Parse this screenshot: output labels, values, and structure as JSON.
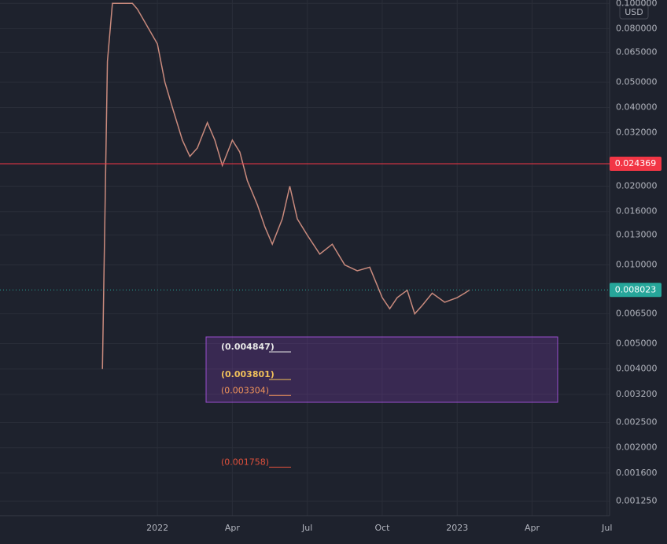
{
  "chart_data": {
    "type": "line",
    "currency": "USD",
    "log_scale": true,
    "grid": true,
    "x": [
      -2.2,
      -2.0,
      -1.8,
      -1.0,
      -0.8,
      0,
      0.3,
      0.6,
      1.0,
      1.3,
      1.6,
      2.0,
      2.3,
      2.6,
      3.0,
      3.3,
      3.6,
      4.0,
      4.3,
      4.6,
      5.0,
      5.3,
      5.6,
      6.0,
      6.5,
      7.0,
      7.5,
      8.0,
      8.5,
      9.0,
      9.3,
      9.6,
      10.0,
      10.3,
      10.6,
      11.0,
      11.5,
      12.0,
      12.3,
      12.5
    ],
    "series": [
      {
        "color": "#c98a7d",
        "values": [
          0.004,
          0.06,
          0.1,
          0.1,
          0.095,
          0.07,
          0.05,
          0.04,
          0.03,
          0.026,
          0.028,
          0.035,
          0.03,
          0.024,
          0.03,
          0.027,
          0.021,
          0.017,
          0.014,
          0.012,
          0.015,
          0.02,
          0.015,
          0.013,
          0.011,
          0.012,
          0.01,
          0.0095,
          0.0098,
          0.0075,
          0.0068,
          0.0075,
          0.008,
          0.0065,
          0.007,
          0.0078,
          0.0072,
          0.0075,
          0.0078,
          0.008023
        ]
      }
    ],
    "xlim": [
      -6.3,
      18.1
    ],
    "xticks": [
      {
        "value": 0,
        "label": "2022"
      },
      {
        "value": 3,
        "label": "Apr"
      },
      {
        "value": 6,
        "label": "Jul"
      },
      {
        "value": 9,
        "label": "Oct"
      },
      {
        "value": 12,
        "label": "2023"
      },
      {
        "value": 15,
        "label": "Apr"
      },
      {
        "value": 18,
        "label": "Jul"
      }
    ],
    "ylim": [
      0.0011,
      0.103
    ],
    "yticks": [
      {
        "value": 0.1,
        "label": "0.100000"
      },
      {
        "value": 0.08,
        "label": "0.080000"
      },
      {
        "value": 0.065,
        "label": "0.065000"
      },
      {
        "value": 0.05,
        "label": "0.050000"
      },
      {
        "value": 0.04,
        "label": "0.040000"
      },
      {
        "value": 0.032,
        "label": "0.032000"
      },
      {
        "value": 0.02,
        "label": "0.020000"
      },
      {
        "value": 0.016,
        "label": "0.016000"
      },
      {
        "value": 0.013,
        "label": "0.013000"
      },
      {
        "value": 0.01,
        "label": "0.010000"
      },
      {
        "value": 0.0065,
        "label": "0.006500"
      },
      {
        "value": 0.005,
        "label": "0.005000"
      },
      {
        "value": 0.004,
        "label": "0.004000"
      },
      {
        "value": 0.0032,
        "label": "0.003200"
      },
      {
        "value": 0.0025,
        "label": "0.002500"
      },
      {
        "value": 0.002,
        "label": "0.002000"
      },
      {
        "value": 0.0016,
        "label": "0.001600"
      },
      {
        "value": 0.00125,
        "label": "0.001250"
      }
    ],
    "price_lines": [
      {
        "value": 0.024369,
        "label": "0.024369",
        "color": "#f23645",
        "style": "solid"
      },
      {
        "value": 0.008023,
        "label": "0.008023",
        "color": "#26a69a",
        "style": "dotted"
      }
    ],
    "levels": [
      {
        "value": 0.004847,
        "label": "(0.004847)",
        "color": "#e6e6e6"
      },
      {
        "value": 0.003801,
        "label": "(0.003801)",
        "color": "#f0c05a"
      },
      {
        "value": 0.003304,
        "label": "(0.003304)",
        "color": "#f0935a"
      },
      {
        "value": 0.001758,
        "label": "(0.001758)",
        "color": "#e0503c"
      }
    ]
  }
}
